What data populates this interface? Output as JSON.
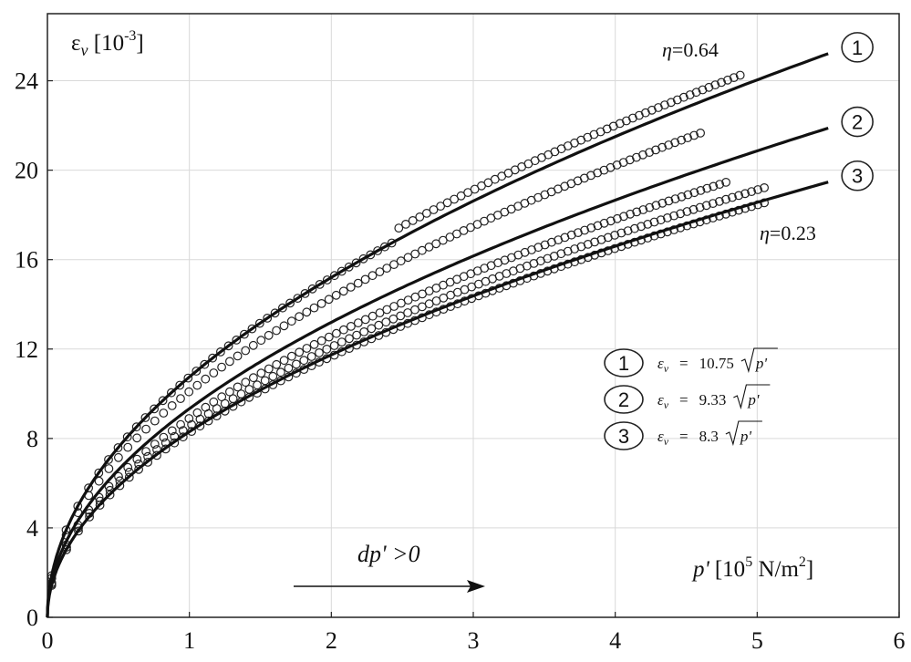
{
  "chart_data": {
    "type": "scatter",
    "x_axis": {
      "label_symbol": "p'",
      "label_unit": "[10",
      "label_unit_sup": "5",
      "label_unit_rest": " N/m",
      "label_unit_sup2": "2",
      "label_unit_close": "]",
      "range": [
        0,
        6
      ],
      "ticks": [
        "0",
        "1",
        "2",
        "3",
        "4",
        "5",
        "6"
      ]
    },
    "y_axis": {
      "label_symbol": "ε",
      "label_sub": "v",
      "label_unit": " [10",
      "label_unit_sup": "-3",
      "label_unit_close": "]",
      "range": [
        0,
        27
      ],
      "ticks": [
        "0",
        "4",
        "8",
        "12",
        "16",
        "20",
        "24"
      ]
    },
    "grid": true,
    "series": [
      {
        "id": "1",
        "kind": "model",
        "coef": 10.75,
        "x_range": [
          0,
          5.5
        ]
      },
      {
        "id": "2",
        "kind": "model",
        "coef": 9.33,
        "x_range": [
          0,
          5.5
        ]
      },
      {
        "id": "3",
        "kind": "model",
        "coef": 8.3,
        "x_range": [
          0,
          5.5
        ]
      },
      {
        "kind": "observed",
        "coef": 10.75,
        "x_max": 4.88,
        "count": 95,
        "jump_at": 2.45,
        "jump_offset": 0.5
      },
      {
        "kind": "observed",
        "coef": 10.1,
        "x_max": 4.6,
        "count": 88
      },
      {
        "kind": "observed",
        "coef": 8.9,
        "x_max": 4.78,
        "count": 92
      },
      {
        "kind": "observed",
        "coef": 8.55,
        "x_max": 5.05,
        "count": 96
      },
      {
        "kind": "observed",
        "coef": 8.25,
        "x_max": 5.05,
        "count": 96
      }
    ],
    "annotations": {
      "eta_top": {
        "symbol": "η",
        "value": "=0.64"
      },
      "eta_bottom": {
        "symbol": "η",
        "value": "=0.23"
      },
      "direction": "dp' >0"
    },
    "legend": [
      {
        "id": "1",
        "lhs": "ε",
        "lhs_sub": "v",
        "eq": "=",
        "coef": "10.75",
        "rhs": "p'"
      },
      {
        "id": "2",
        "lhs": "ε",
        "lhs_sub": "v",
        "eq": "=",
        "coef": "9.33",
        "rhs": "p'"
      },
      {
        "id": "3",
        "lhs": "ε",
        "lhs_sub": "v",
        "eq": "=",
        "coef": "8.3",
        "rhs": "p'"
      }
    ]
  }
}
